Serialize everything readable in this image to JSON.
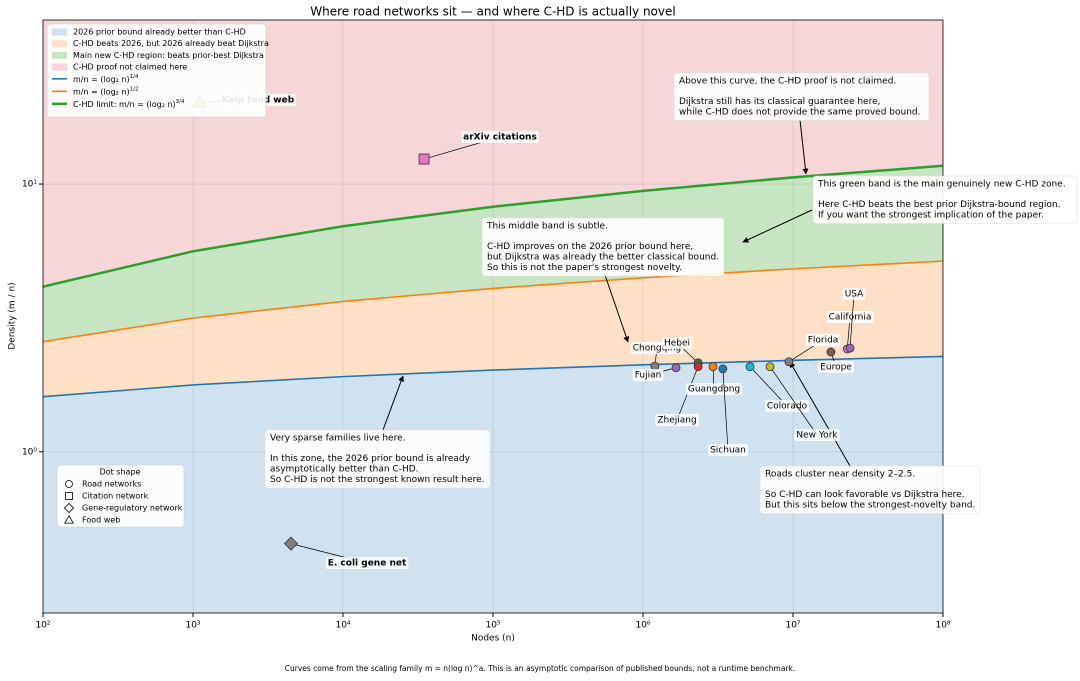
{
  "chart_data": {
    "type": "scatter",
    "title": "Where road networks sit — and where C-HD is actually novel",
    "x_label": "Nodes (n)",
    "y_label": "Density (m / n)",
    "caption": "Curves come from the scaling family m = n(log n)^a. This is an asymptotic comparison of published bounds, not a runtime benchmark.",
    "log_x": true,
    "log_y": true,
    "grid": true,
    "xlim": [
      100,
      100000000
    ],
    "ylim": [
      0.25,
      41
    ],
    "xticks": [
      {
        "value": 100,
        "label": "10²"
      },
      {
        "value": 1000,
        "label": "10³"
      },
      {
        "value": 10000,
        "label": "10⁴"
      },
      {
        "value": 100000,
        "label": "10⁵"
      },
      {
        "value": 1000000,
        "label": "10⁶"
      },
      {
        "value": 10000000,
        "label": "10⁷"
      },
      {
        "value": 100000000,
        "label": "10⁸"
      }
    ],
    "yticks": [
      {
        "value": 1,
        "label": "10⁰"
      },
      {
        "value": 10,
        "label": "10¹"
      }
    ],
    "regions": [
      {
        "name": "2026 prior bound already better than C-HD",
        "color": "#d0e2f0"
      },
      {
        "name": "C-HD beats 2026, but 2026 already beat Dijkstra",
        "color": "#fde0c6"
      },
      {
        "name": "Main new C-HD region: beats prior-best Dijkstra",
        "color": "#c8e5c3"
      },
      {
        "name": "C-HD proof not claimed here",
        "color": "#f6d6d7"
      }
    ],
    "curve_x": [
      100,
      1000,
      10000,
      100000,
      1000000,
      10000000,
      100000000
    ],
    "curves": [
      {
        "name": "m/n = (log₂ n)",
        "exponent": "1/4",
        "color": "#1f77b4",
        "values": [
          1.606,
          1.777,
          1.909,
          2.019,
          2.113,
          2.196,
          2.271
        ]
      },
      {
        "name": "m/n = (log₂ n)",
        "exponent": "1/2",
        "color": "#ff7f0e",
        "values": [
          2.578,
          3.157,
          3.645,
          4.076,
          4.465,
          4.822,
          5.155
        ]
      },
      {
        "name": "C-HD limit: m/n = (log₂ n)",
        "exponent": "3/4",
        "color": "#2ca02c",
        "values": [
          4.139,
          5.609,
          6.959,
          8.228,
          9.433,
          10.589,
          11.705
        ]
      }
    ],
    "marker_legend": {
      "title": "Dot shape",
      "entries": [
        {
          "label": "Road networks",
          "marker": "circle"
        },
        {
          "label": "Citation network",
          "marker": "square"
        },
        {
          "label": "Gene-regulatory network",
          "marker": "diamond"
        },
        {
          "label": "Food web",
          "marker": "triangle"
        }
      ]
    },
    "points": [
      {
        "name": "Chongqing",
        "marker": "circle",
        "color": "#7f7f7f",
        "x": 1200000,
        "y": 2.09
      },
      {
        "name": "Fujian",
        "marker": "circle",
        "color": "#9467bd",
        "x": 1660000,
        "y": 2.06
      },
      {
        "name": "Hebei",
        "marker": "circle",
        "color": "#4a6b3a",
        "x": 2330000,
        "y": 2.15
      },
      {
        "name": "Zhejiang",
        "marker": "circle",
        "color": "#d62728",
        "x": 2330000,
        "y": 2.08
      },
      {
        "name": "Guangdong",
        "marker": "circle",
        "color": "#ff7f0e",
        "x": 2930000,
        "y": 2.08
      },
      {
        "name": "Sichuan",
        "marker": "circle",
        "color": "#1f77b4",
        "x": 3410000,
        "y": 2.04
      },
      {
        "name": "Colorado",
        "marker": "circle",
        "color": "#17becf",
        "x": 5170000,
        "y": 2.08
      },
      {
        "name": "New York",
        "marker": "circle",
        "color": "#bcbd22",
        "x": 7030000,
        "y": 2.08
      },
      {
        "name": "Florida",
        "marker": "circle",
        "color": "#7f7f7f",
        "x": 9400000,
        "y": 2.17
      },
      {
        "name": "Europe",
        "marker": "circle",
        "color": "#8c564b",
        "x": 17900000,
        "y": 2.36
      },
      {
        "name": "California",
        "marker": "circle",
        "color": "#e377c2",
        "x": 23000000,
        "y": 2.42
      },
      {
        "name": "USA",
        "marker": "circle",
        "color": "#9467bd",
        "x": 24000000,
        "y": 2.44
      },
      {
        "name": "arXiv citations",
        "marker": "square",
        "color": "#e377c2",
        "x": 34700,
        "y": 12.4
      },
      {
        "name": "Kelp food web",
        "marker": "triangle",
        "color": "#bcbd22",
        "x": 1110,
        "y": 20.2
      },
      {
        "name": "E. coli gene net",
        "marker": "diamond",
        "color": "#7f7f7f",
        "x": 4500,
        "y": 0.454
      }
    ],
    "annotations": [
      {
        "paragraphs": [
          [
            "Above this curve, the C-HD proof is not claimed."
          ],
          [
            "Dijkstra still has its classical guarantee here,",
            "while C-HD does not provide the same proved bound."
          ]
        ]
      },
      {
        "paragraphs": [
          [
            "This green band is the main genuinely new C-HD zone."
          ],
          [
            "Here C-HD beats the best prior Dijkstra-bound region.",
            "If you want the strongest implication of the paper."
          ]
        ]
      },
      {
        "paragraphs": [
          [
            "This middle band is subtle."
          ],
          [
            "C-HD improves on the 2026 prior bound here,",
            "but Dijkstra was already the better classical bound.",
            "So this is not the paper's strongest novelty."
          ]
        ]
      },
      {
        "paragraphs": [
          [
            "Very sparse families live here."
          ],
          [
            "In this zone, the 2026 prior bound is already",
            "asymptotically better than C-HD.",
            "So C-HD is not the strongest known result here."
          ]
        ]
      },
      {
        "paragraphs": [
          [
            "Roads cluster near density 2–2.5."
          ],
          [
            "So C-HD can look favorable vs Dijkstra here.",
            "But this sits below the strongest-novelty band."
          ]
        ]
      }
    ]
  }
}
